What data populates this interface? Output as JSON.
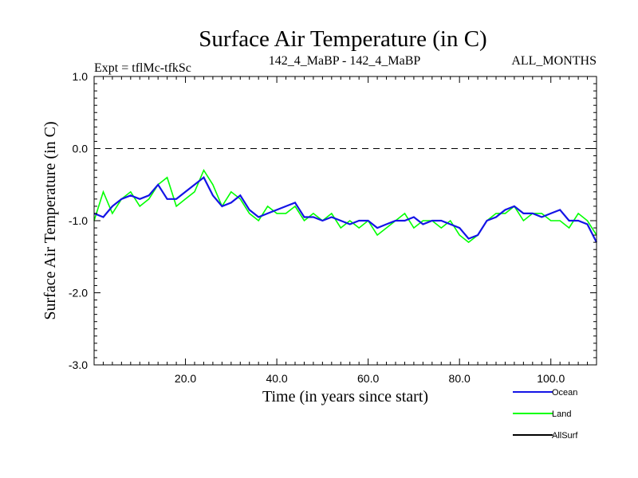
{
  "chart_data": {
    "type": "line",
    "title": "Surface Air Temperature (in C)",
    "subtitle_left": "Expt = tflMc-tfkSc",
    "subtitle_center": "142_4_MaBP - 142_4_MaBP",
    "subtitle_right": "ALL_MONTHS",
    "xlabel": "Time (in years since start)",
    "ylabel": "Surface Air Temperature (in C)",
    "xlim": [
      0,
      110
    ],
    "ylim": [
      -3.0,
      1.0
    ],
    "x_ticks": [
      20,
      40,
      60,
      80,
      100
    ],
    "x_tick_labels": [
      "20.0",
      "40.0",
      "60.0",
      "80.0",
      "100.0"
    ],
    "y_ticks": [
      1.0,
      0.0,
      -1.0,
      -2.0,
      -3.0
    ],
    "y_tick_labels": [
      "1.0",
      "0.0",
      "-1.0",
      "-2.0",
      "-3.0"
    ],
    "reference_line": 0.0,
    "legend_position": "bottom-right",
    "series": [
      {
        "name": "Land",
        "color": "#00ff00",
        "x": [
          0,
          2,
          4,
          6,
          8,
          10,
          12,
          14,
          16,
          18,
          20,
          22,
          24,
          26,
          28,
          30,
          32,
          34,
          36,
          38,
          40,
          42,
          44,
          46,
          48,
          50,
          52,
          54,
          56,
          58,
          60,
          62,
          64,
          66,
          68,
          70,
          72,
          74,
          76,
          78,
          80,
          82,
          84,
          86,
          88,
          90,
          92,
          94,
          96,
          98,
          100,
          102,
          104,
          106,
          108,
          110
        ],
        "values": [
          -1.0,
          -0.6,
          -0.9,
          -0.7,
          -0.6,
          -0.8,
          -0.7,
          -0.5,
          -0.4,
          -0.8,
          -0.7,
          -0.6,
          -0.3,
          -0.5,
          -0.8,
          -0.6,
          -0.7,
          -0.9,
          -1.0,
          -0.8,
          -0.9,
          -0.9,
          -0.8,
          -1.0,
          -0.9,
          -1.0,
          -0.9,
          -1.1,
          -1.0,
          -1.1,
          -1.0,
          -1.2,
          -1.1,
          -1.0,
          -0.9,
          -1.1,
          -1.0,
          -1.0,
          -1.1,
          -1.0,
          -1.2,
          -1.3,
          -1.2,
          -1.0,
          -0.9,
          -0.9,
          -0.8,
          -1.0,
          -0.9,
          -0.9,
          -1.0,
          -1.0,
          -1.1,
          -0.9,
          -1.0,
          -1.2
        ]
      },
      {
        "name": "Ocean",
        "color": "#1414e6",
        "x": [
          0,
          2,
          4,
          6,
          8,
          10,
          12,
          14,
          16,
          18,
          20,
          22,
          24,
          26,
          28,
          30,
          32,
          34,
          36,
          38,
          40,
          42,
          44,
          46,
          48,
          50,
          52,
          54,
          56,
          58,
          60,
          62,
          64,
          66,
          68,
          70,
          72,
          74,
          76,
          78,
          80,
          82,
          84,
          86,
          88,
          90,
          92,
          94,
          96,
          98,
          100,
          102,
          104,
          106,
          108,
          110
        ],
        "values": [
          -0.9,
          -0.95,
          -0.8,
          -0.7,
          -0.65,
          -0.7,
          -0.65,
          -0.5,
          -0.7,
          -0.7,
          -0.6,
          -0.5,
          -0.4,
          -0.65,
          -0.8,
          -0.75,
          -0.65,
          -0.85,
          -0.95,
          -0.9,
          -0.85,
          -0.8,
          -0.75,
          -0.95,
          -0.95,
          -1.0,
          -0.95,
          -1.0,
          -1.05,
          -1.0,
          -1.0,
          -1.1,
          -1.05,
          -1.0,
          -1.0,
          -0.95,
          -1.05,
          -1.0,
          -1.0,
          -1.05,
          -1.1,
          -1.25,
          -1.2,
          -1.0,
          -0.95,
          -0.85,
          -0.8,
          -0.9,
          -0.9,
          -0.95,
          -0.9,
          -0.85,
          -1.0,
          -1.0,
          -1.05,
          -1.3
        ]
      },
      {
        "name": "AllSurf",
        "color": "#000000",
        "x": [],
        "values": []
      }
    ]
  }
}
